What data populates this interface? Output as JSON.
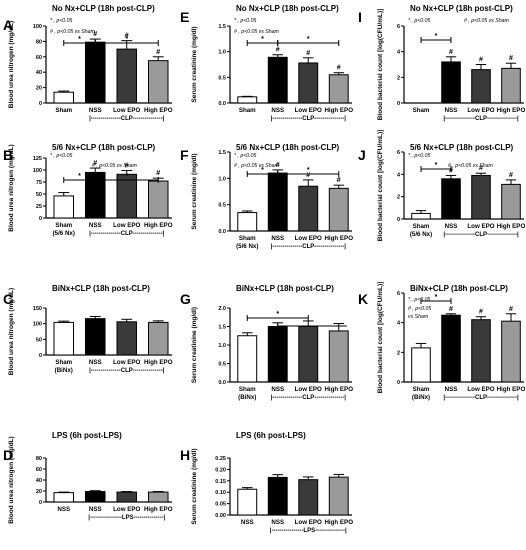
{
  "colors": {
    "sham": "#ffffff",
    "nss": "#000000",
    "low_epo": "#3a3a3a",
    "high_epo": "#9a9a9a"
  },
  "chart_data": [
    {
      "id": "A",
      "type": "bar",
      "letter": "A",
      "title": "No Nx+CLP (18h post-CLP)",
      "ylabel": "Blood urea nitrogen (mg/dL)",
      "ylim": [
        0,
        100
      ],
      "yticks": [
        "0",
        "20",
        "40",
        "60",
        "80",
        "100"
      ],
      "categories": [
        "Sham",
        "NSS",
        "Low EPO",
        "High EPO"
      ],
      "subcats": [
        "",
        "",
        "",
        ""
      ],
      "values": [
        14,
        79,
        70,
        55
      ],
      "errors": [
        1.5,
        4,
        11,
        5
      ],
      "markers": [
        "",
        "#",
        "#",
        "#"
      ],
      "group_label": "|---------------CLP---------------|",
      "legend": [
        "* , p<0.05",
        "# , p<0.05 vs Sham"
      ],
      "sig": [
        "*",
        "*"
      ]
    },
    {
      "id": "B",
      "type": "bar",
      "letter": "B",
      "title": "5/6 Nx+CLP (18h post-CLP)",
      "ylabel": "Blood urea nitrogen (mg/dL)",
      "ylim": [
        0,
        125
      ],
      "yticks": [
        "0",
        "25",
        "50",
        "75",
        "100",
        "125"
      ],
      "categories": [
        "Sham",
        "NSS",
        "Low EPO",
        "High EPO"
      ],
      "subcats": [
        "(5/6 Nx)",
        "",
        "",
        ""
      ],
      "values": [
        46,
        95,
        91,
        77
      ],
      "errors": [
        7,
        9,
        8,
        6
      ],
      "markers": [
        "",
        "#",
        "#",
        "#"
      ],
      "group_label": "|---------------CLP---------------|",
      "legend": [
        "* , p<0.05",
        "# , p<0.05 vs Sham"
      ],
      "sig": [
        "*",
        "*"
      ]
    },
    {
      "id": "C",
      "type": "bar",
      "letter": "C",
      "title": "BiNx+CLP (18h post-CLP)",
      "ylabel": "Blood urea nitrogen (mg/dL)",
      "ylim": [
        0,
        150
      ],
      "yticks": [
        "0",
        "50",
        "100",
        "150"
      ],
      "categories": [
        "Sham",
        "NSS",
        "Low EPO",
        "High EPO"
      ],
      "subcats": [
        "(BiNx)",
        "",
        "",
        ""
      ],
      "values": [
        104,
        116,
        106,
        104
      ],
      "errors": [
        4,
        7,
        8,
        5
      ],
      "markers": [
        "",
        "",
        "",
        ""
      ],
      "group_label": "|---------------CLP---------------|",
      "legend": [],
      "sig": []
    },
    {
      "id": "D",
      "type": "bar",
      "letter": "D",
      "title": "LPS (6h post-LPS)",
      "ylabel": "Blood urea nitrogen (mg/dL)",
      "ylim": [
        0,
        80
      ],
      "yticks": [
        "0",
        "20",
        "40",
        "60",
        "80"
      ],
      "categories": [
        "NSS",
        "NSS",
        "Low EPO",
        "High EPO"
      ],
      "subcats": [
        "",
        "",
        "",
        ""
      ],
      "values": [
        17,
        19,
        18,
        18
      ],
      "errors": [
        1,
        1.5,
        1,
        1
      ],
      "markers": [
        "",
        "",
        "",
        ""
      ],
      "group_label": "|----------------LPS---------------|",
      "legend": [],
      "sig": []
    },
    {
      "id": "E",
      "type": "bar",
      "letter": "E",
      "title": "No Nx+CLP (18h post-CLP)",
      "ylabel": "Serum creatinine (mg/dl)",
      "ylim": [
        0,
        1.5
      ],
      "yticks": [
        "0.0",
        "0.5",
        "1.0",
        "1.5"
      ],
      "categories": [
        "Sham",
        "NSS",
        "Low EPO",
        "High EPO"
      ],
      "subcats": [
        "",
        "",
        "",
        ""
      ],
      "values": [
        0.12,
        0.89,
        0.78,
        0.55
      ],
      "errors": [
        0.01,
        0.05,
        0.1,
        0.04
      ],
      "markers": [
        "",
        "#",
        "#",
        "#"
      ],
      "group_label": "|---------------CLP---------------|",
      "legend": [
        "* , p<0.05",
        "# , p<0.05 vs Sham"
      ],
      "sig": [
        "*",
        "*"
      ]
    },
    {
      "id": "F",
      "type": "bar",
      "letter": "F",
      "title": "5/6 Nx+CLP (18h post-CLP)",
      "ylabel": "Serum creatinine (mg/dl)",
      "ylim": [
        0,
        1.5
      ],
      "yticks": [
        "0.0",
        "0.5",
        "1.0",
        "1.5"
      ],
      "categories": [
        "Sham",
        "NSS",
        "Low EPO",
        "High EPO"
      ],
      "subcats": [
        "(5/6 Nx)",
        "",
        "",
        ""
      ],
      "values": [
        0.35,
        1.1,
        0.85,
        0.81
      ],
      "errors": [
        0.03,
        0.06,
        0.12,
        0.06
      ],
      "markers": [
        "",
        "#",
        "#",
        "#"
      ],
      "group_label": "|---------------CLP---------------|",
      "legend": [
        "* , p<0.05",
        "# , p<0.05 vs Sham"
      ],
      "sig": [
        "*",
        "*"
      ]
    },
    {
      "id": "G",
      "type": "bar",
      "letter": "G",
      "title": "BiNx+CLP (18h post-CLP)",
      "ylabel": "Serum creatinine (mg/dl)",
      "ylim": [
        0,
        2.0
      ],
      "yticks": [
        "0.0",
        "0.5",
        "1.0",
        "1.5",
        "2.0"
      ],
      "categories": [
        "Sham",
        "NSS",
        "Low EPO",
        "High EPO"
      ],
      "subcats": [
        "(BiNx)",
        "",
        "",
        ""
      ],
      "values": [
        1.25,
        1.5,
        1.5,
        1.38
      ],
      "errors": [
        0.08,
        0.1,
        0.15,
        0.2
      ],
      "markers": [
        "",
        "",
        "",
        ""
      ],
      "group_label": "|---------------CLP---------------|",
      "legend": [],
      "sig": [
        "*"
      ]
    },
    {
      "id": "H",
      "type": "bar",
      "letter": "H",
      "title": "LPS (6h post-LPS)",
      "ylabel": "Serum creatinine (mg/dl)",
      "ylim": [
        0,
        0.25
      ],
      "yticks": [
        "0.00",
        "0.05",
        "0.10",
        "0.15",
        "0.20",
        "0.25"
      ],
      "categories": [
        "NSS",
        "NSS",
        "Low EPO",
        "High EPO"
      ],
      "subcats": [
        "",
        "",
        "",
        ""
      ],
      "values": [
        0.113,
        0.165,
        0.155,
        0.166
      ],
      "errors": [
        0.007,
        0.012,
        0.012,
        0.012
      ],
      "markers": [
        "",
        "",
        "",
        ""
      ],
      "group_label": "|----------------LPS---------------|",
      "legend": [],
      "sig": []
    },
    {
      "id": "I",
      "type": "bar",
      "letter": "I",
      "title": "No Nx+CLP (18h post-CLP)",
      "ylabel": "Blood bacterial count [log(CFU/mL)]",
      "ylim": [
        0,
        6
      ],
      "yticks": [
        "0",
        "2",
        "4",
        "6"
      ],
      "categories": [
        "Sham",
        "NSS",
        "Low EPO",
        "High EPO"
      ],
      "subcats": [
        "",
        "",
        "",
        ""
      ],
      "values": [
        0,
        3.2,
        2.6,
        2.7
      ],
      "errors": [
        0,
        0.4,
        0.4,
        0.4
      ],
      "markers": [
        "",
        "#",
        "#",
        "#"
      ],
      "group_label": "|---------------CLP---------------|",
      "legend": [
        "* , p<0.05",
        "# , p<0.05 vs Sham"
      ],
      "sig": [
        "*"
      ]
    },
    {
      "id": "J",
      "type": "bar",
      "letter": "J",
      "title": "5/6 Nx+CLP (18h post-CLP)",
      "ylabel": "Blood bacterial count [log(CFU/mL)]",
      "ylim": [
        0,
        6
      ],
      "yticks": [
        "0",
        "2",
        "4",
        "6"
      ],
      "categories": [
        "Sham",
        "NSS",
        "Low EPO",
        "High EPO"
      ],
      "subcats": [
        "(5/6 Nx)",
        "",
        "",
        ""
      ],
      "values": [
        0.5,
        3.6,
        3.9,
        3.1
      ],
      "errors": [
        0.25,
        0.3,
        0.2,
        0.4
      ],
      "markers": [
        "",
        "#",
        "#",
        "#"
      ],
      "group_label": "|---------------CLP---------------|",
      "legend": [
        "* , p<0.05",
        "# , p<0.05 vs Sham"
      ],
      "sig": [
        "*"
      ]
    },
    {
      "id": "K",
      "type": "bar",
      "letter": "K",
      "title": "BiNx+CLP (18h post-CLP)",
      "ylabel": "Blood bacterial count [log(CFU/mL)]",
      "ylim": [
        0,
        6
      ],
      "yticks": [
        "0",
        "2",
        "4",
        "6"
      ],
      "categories": [
        "Sham",
        "NSS",
        "Low EPO",
        "High EPO"
      ],
      "subcats": [
        "(BiNx)",
        "",
        "",
        ""
      ],
      "values": [
        2.3,
        4.5,
        4.2,
        4.1
      ],
      "errors": [
        0.3,
        0.1,
        0.2,
        0.5
      ],
      "markers": [
        "",
        "#",
        "#",
        "#"
      ],
      "group_label": "|---------------CLP---------------|",
      "legend": [
        "* , p<0.05",
        "# , p<0.05",
        "vs Sham"
      ],
      "sig": [
        "*"
      ]
    }
  ]
}
